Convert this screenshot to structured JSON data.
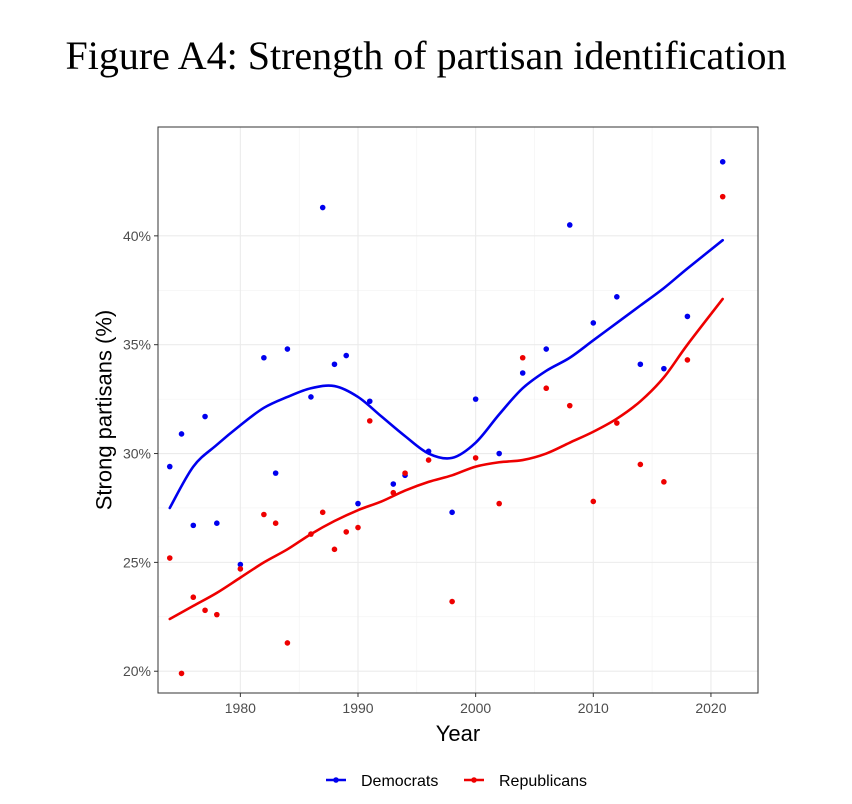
{
  "figure_title": "Figure A4: Strength of partisan identification",
  "chart_data": {
    "type": "scatter",
    "xlabel": "Year",
    "ylabel": "Strong partisans (%)",
    "xlim": [
      1973,
      2024
    ],
    "ylim": [
      19.0,
      45.0
    ],
    "x_ticks": [
      1980,
      1990,
      2000,
      2010,
      2020
    ],
    "y_ticks": [
      20,
      25,
      30,
      35,
      40
    ],
    "y_tick_labels": [
      "20%",
      "25%",
      "30%",
      "35%",
      "40%"
    ],
    "grid": true,
    "legend_position": "bottom",
    "series": [
      {
        "name": "Democrats",
        "color": "#0000ee",
        "points": [
          [
            1974,
            29.4
          ],
          [
            1975,
            30.9
          ],
          [
            1976,
            26.7
          ],
          [
            1977,
            31.7
          ],
          [
            1978,
            26.8
          ],
          [
            1980,
            24.9
          ],
          [
            1982,
            34.4
          ],
          [
            1983,
            29.1
          ],
          [
            1984,
            34.8
          ],
          [
            1986,
            32.6
          ],
          [
            1987,
            41.3
          ],
          [
            1988,
            34.1
          ],
          [
            1989,
            34.5
          ],
          [
            1990,
            27.7
          ],
          [
            1991,
            32.4
          ],
          [
            1993,
            28.6
          ],
          [
            1994,
            29.0
          ],
          [
            1996,
            30.1
          ],
          [
            1998,
            27.3
          ],
          [
            2000,
            32.5
          ],
          [
            2002,
            30.0
          ],
          [
            2004,
            33.7
          ],
          [
            2006,
            34.8
          ],
          [
            2008,
            40.5
          ],
          [
            2010,
            36.0
          ],
          [
            2012,
            37.2
          ],
          [
            2014,
            34.1
          ],
          [
            2016,
            33.9
          ],
          [
            2018,
            36.3
          ],
          [
            2021,
            43.4
          ]
        ],
        "smooth": [
          [
            1974,
            27.5
          ],
          [
            1976,
            29.4
          ],
          [
            1978,
            30.4
          ],
          [
            1980,
            31.3
          ],
          [
            1982,
            32.1
          ],
          [
            1984,
            32.6
          ],
          [
            1986,
            33.0
          ],
          [
            1988,
            33.1
          ],
          [
            1990,
            32.6
          ],
          [
            1992,
            31.7
          ],
          [
            1994,
            30.8
          ],
          [
            1996,
            30.0
          ],
          [
            1998,
            29.8
          ],
          [
            2000,
            30.5
          ],
          [
            2002,
            31.8
          ],
          [
            2004,
            33.0
          ],
          [
            2006,
            33.8
          ],
          [
            2008,
            34.4
          ],
          [
            2010,
            35.2
          ],
          [
            2012,
            36.0
          ],
          [
            2014,
            36.8
          ],
          [
            2016,
            37.6
          ],
          [
            2018,
            38.5
          ],
          [
            2021,
            39.8
          ]
        ]
      },
      {
        "name": "Republicans",
        "color": "#ee0000",
        "points": [
          [
            1974,
            25.2
          ],
          [
            1975,
            19.9
          ],
          [
            1976,
            23.4
          ],
          [
            1977,
            22.8
          ],
          [
            1978,
            22.6
          ],
          [
            1980,
            24.7
          ],
          [
            1982,
            27.2
          ],
          [
            1983,
            26.8
          ],
          [
            1984,
            21.3
          ],
          [
            1986,
            26.3
          ],
          [
            1987,
            27.3
          ],
          [
            1988,
            25.6
          ],
          [
            1989,
            26.4
          ],
          [
            1990,
            26.6
          ],
          [
            1991,
            31.5
          ],
          [
            1993,
            28.2
          ],
          [
            1994,
            29.1
          ],
          [
            1996,
            29.7
          ],
          [
            1998,
            23.2
          ],
          [
            2000,
            29.8
          ],
          [
            2002,
            27.7
          ],
          [
            2004,
            34.4
          ],
          [
            2006,
            33.0
          ],
          [
            2008,
            32.2
          ],
          [
            2010,
            27.8
          ],
          [
            2012,
            31.4
          ],
          [
            2014,
            29.5
          ],
          [
            2016,
            28.7
          ],
          [
            2018,
            34.3
          ],
          [
            2021,
            41.8
          ]
        ],
        "smooth": [
          [
            1974,
            22.4
          ],
          [
            1976,
            23.0
          ],
          [
            1978,
            23.6
          ],
          [
            1980,
            24.3
          ],
          [
            1982,
            25.0
          ],
          [
            1984,
            25.6
          ],
          [
            1986,
            26.3
          ],
          [
            1988,
            26.9
          ],
          [
            1990,
            27.4
          ],
          [
            1992,
            27.8
          ],
          [
            1994,
            28.3
          ],
          [
            1996,
            28.7
          ],
          [
            1998,
            29.0
          ],
          [
            2000,
            29.4
          ],
          [
            2002,
            29.6
          ],
          [
            2004,
            29.7
          ],
          [
            2006,
            30.0
          ],
          [
            2008,
            30.5
          ],
          [
            2010,
            31.0
          ],
          [
            2012,
            31.6
          ],
          [
            2014,
            32.4
          ],
          [
            2016,
            33.5
          ],
          [
            2018,
            35.0
          ],
          [
            2021,
            37.1
          ]
        ]
      }
    ]
  }
}
